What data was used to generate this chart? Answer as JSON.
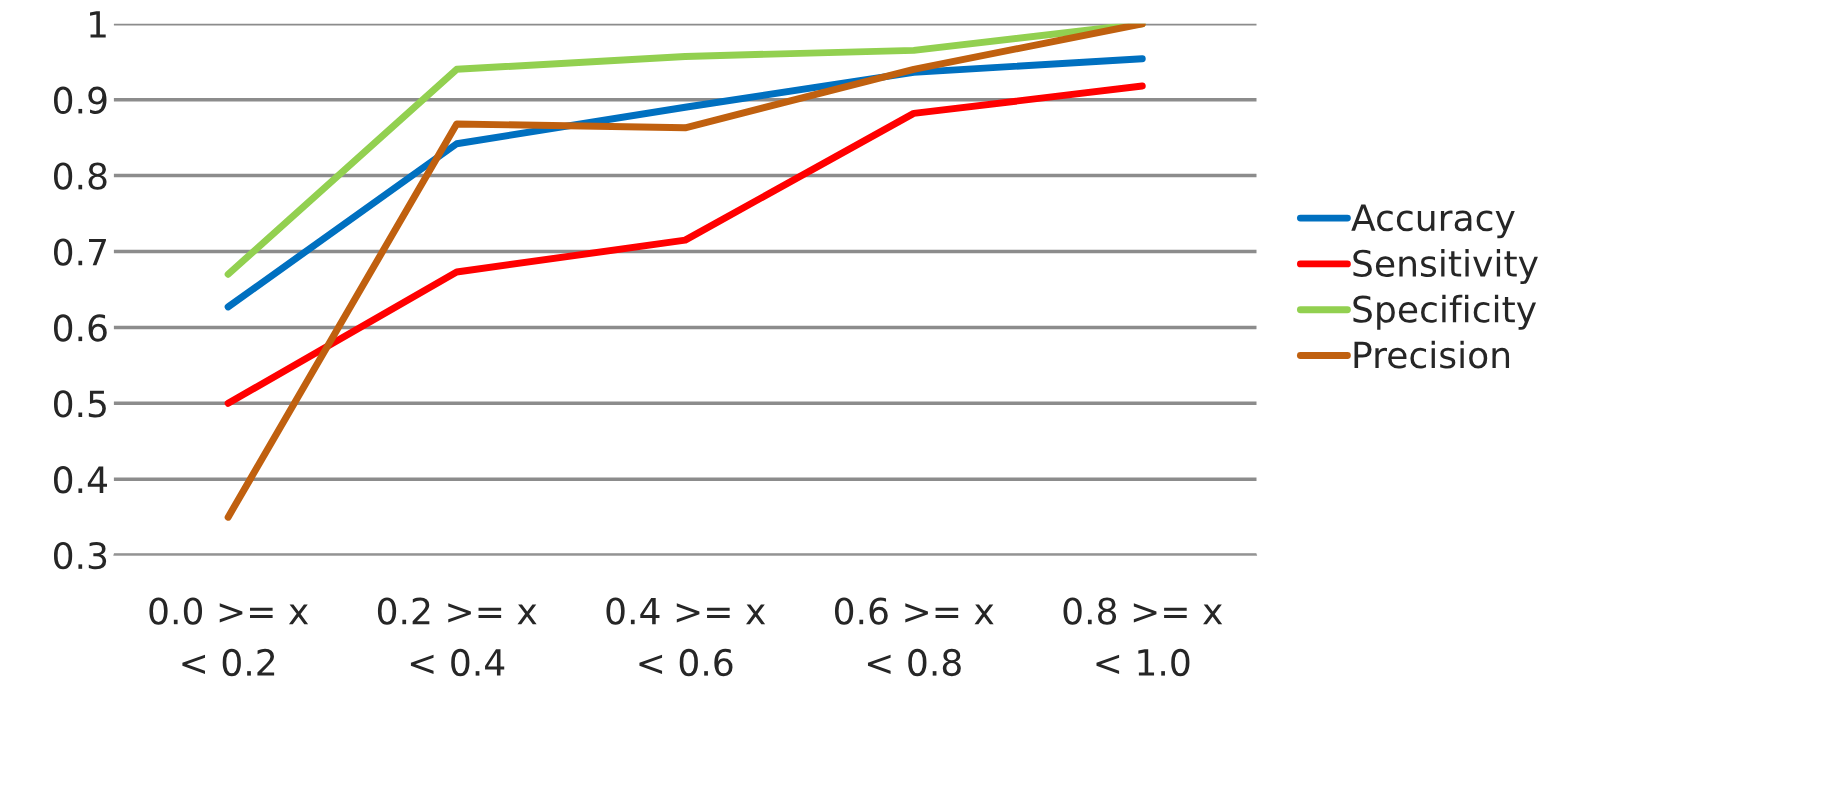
{
  "chart_data": {
    "type": "line",
    "categories": [
      "0.0 >= x\n< 0.2",
      "0.2 >= x\n< 0.4",
      "0.4 >= x\n< 0.6",
      "0.6 >= x\n< 0.8",
      "0.8 >= x\n< 1.0"
    ],
    "series": [
      {
        "name": "Accuracy",
        "color": "#0070c0",
        "values": [
          0.627,
          0.842,
          0.89,
          0.936,
          0.954
        ]
      },
      {
        "name": "Sensitivity",
        "color": "#ff0000",
        "values": [
          0.5,
          0.673,
          0.715,
          0.882,
          0.918
        ]
      },
      {
        "name": "Specificity",
        "color": "#92d050",
        "values": [
          0.67,
          0.94,
          0.957,
          0.965,
          1.0
        ]
      },
      {
        "name": "Precision",
        "color": "#c0600f",
        "values": [
          0.35,
          0.868,
          0.863,
          0.94,
          1.0
        ]
      }
    ],
    "ylim": [
      0.3,
      1
    ],
    "yticks": [
      0.3,
      0.4,
      0.5,
      0.6,
      0.7,
      0.8,
      0.9,
      1
    ],
    "grid": "y",
    "legend": "right",
    "marker": "none",
    "line_style": "solid"
  }
}
